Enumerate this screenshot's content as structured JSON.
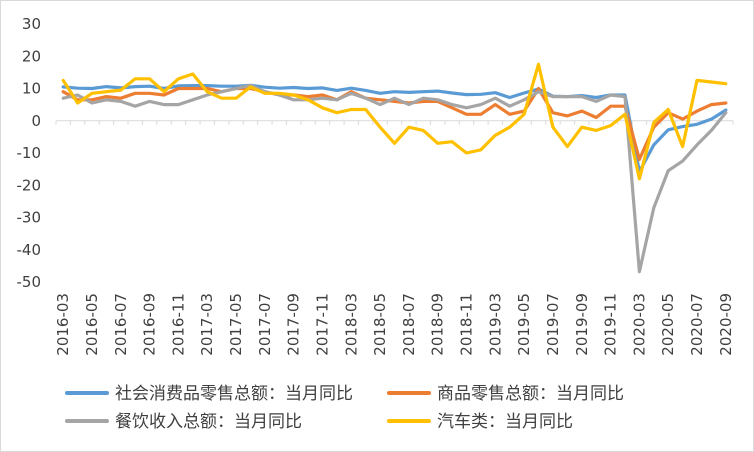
{
  "chart_data": {
    "type": "line",
    "x": [
      "2016-03",
      "2016-04",
      "2016-05",
      "2016-06",
      "2016-07",
      "2016-08",
      "2016-09",
      "2016-10",
      "2016-11",
      "2016-12",
      "2017-03",
      "2017-04",
      "2017-05",
      "2017-06",
      "2017-07",
      "2017-08",
      "2017-09",
      "2017-10",
      "2017-11",
      "2017-12",
      "2018-03",
      "2018-04",
      "2018-05",
      "2018-06",
      "2018-07",
      "2018-08",
      "2018-09",
      "2018-10",
      "2018-11",
      "2018-12",
      "2019-03",
      "2019-04",
      "2019-05",
      "2019-06",
      "2019-07",
      "2019-08",
      "2019-09",
      "2019-10",
      "2019-11",
      "2019-12",
      "2020-03",
      "2020-04",
      "2020-05",
      "2020-06",
      "2020-07",
      "2020-08",
      "2020-09"
    ],
    "x_tick_labels": [
      "2016-03",
      "2016-05",
      "2016-07",
      "2016-09",
      "2016-11",
      "2017-03",
      "2017-05",
      "2017-07",
      "2017-09",
      "2017-11",
      "2018-03",
      "2018-05",
      "2018-07",
      "2018-09",
      "2018-11",
      "2019-03",
      "2019-05",
      "2019-07",
      "2019-09",
      "2019-11",
      "2020-03",
      "2020-05",
      "2020-07",
      "2020-09"
    ],
    "ylim": [
      -50,
      30
    ],
    "yticks": [
      30,
      20,
      10,
      0,
      -10,
      -20,
      -30,
      -40,
      -50
    ],
    "grid": false,
    "legend_position": "bottom",
    "series": [
      {
        "name": "社会消费品零售总额：当月同比",
        "color": "#5B9BD5",
        "values": [
          10.5,
          10.1,
          10.0,
          10.6,
          10.2,
          10.6,
          10.7,
          10.0,
          10.8,
          10.9,
          10.9,
          10.7,
          10.7,
          11.0,
          10.4,
          10.1,
          10.3,
          10.0,
          10.2,
          9.4,
          10.1,
          9.4,
          8.5,
          9.0,
          8.8,
          9.0,
          9.2,
          8.6,
          8.1,
          8.2,
          8.7,
          7.2,
          8.6,
          9.8,
          7.6,
          7.5,
          7.8,
          7.2,
          8.0,
          8.0,
          -15.8,
          -7.5,
          -2.8,
          -1.8,
          -1.1,
          0.5,
          3.3
        ]
      },
      {
        "name": "商品零售总额：当月同比",
        "color": "#ED7D31",
        "values": [
          9.0,
          6.5,
          6.5,
          7.5,
          7.0,
          8.5,
          8.5,
          8.0,
          10.0,
          10.0,
          10.0,
          9.0,
          10.0,
          10.0,
          9.0,
          8.0,
          8.0,
          7.5,
          8.0,
          6.5,
          9.0,
          7.0,
          6.5,
          6.0,
          5.5,
          6.0,
          6.0,
          4.0,
          2.0,
          2.0,
          5.0,
          2.0,
          3.0,
          10.0,
          2.5,
          1.5,
          3.0,
          1.0,
          4.5,
          4.5,
          -12.0,
          -2.0,
          2.5,
          0.5,
          3.0,
          5.0,
          5.5
        ]
      },
      {
        "name": "餐饮收入总额：当月同比",
        "color": "#A5A5A5",
        "values": [
          7.0,
          8.0,
          5.5,
          6.5,
          6.0,
          4.5,
          6.0,
          5.0,
          5.0,
          6.5,
          8.0,
          9.0,
          10.0,
          11.0,
          9.0,
          8.0,
          6.5,
          6.5,
          7.0,
          6.5,
          8.5,
          7.0,
          5.0,
          7.0,
          5.0,
          7.0,
          6.5,
          5.0,
          4.0,
          5.0,
          7.0,
          4.5,
          6.5,
          9.0,
          7.5,
          7.5,
          7.5,
          6.0,
          8.0,
          7.5,
          -46.8,
          -27.0,
          -15.5,
          -12.5,
          -7.5,
          -3.0,
          2.5
        ]
      },
      {
        "name": "汽车类：当月同比",
        "color": "#FFC000",
        "values": [
          12.5,
          5.5,
          8.5,
          9.0,
          9.5,
          13.0,
          13.0,
          9.0,
          13.0,
          14.5,
          9.0,
          7.0,
          7.0,
          10.5,
          8.5,
          8.5,
          8.0,
          6.5,
          4.0,
          2.5,
          3.5,
          3.5,
          -2.0,
          -7.0,
          -2.0,
          -3.0,
          -7.0,
          -6.5,
          -10.0,
          -9.0,
          -4.5,
          -2.0,
          2.0,
          17.5,
          -2.0,
          -8.0,
          -2.0,
          -3.0,
          -1.5,
          2.0,
          -18.0,
          -0.5,
          3.5,
          -8.0,
          12.5,
          12.0,
          11.5
        ]
      }
    ]
  }
}
